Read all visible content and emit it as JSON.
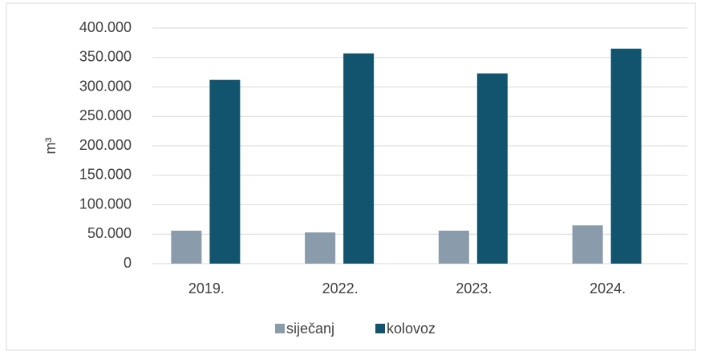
{
  "chart_data": {
    "type": "bar",
    "y_label": "m³",
    "categories": [
      "2019.",
      "2022.",
      "2023.",
      "2024."
    ],
    "series": [
      {
        "name": "siječanj",
        "color": "#8a9bab",
        "values": [
          56000,
          53000,
          56000,
          65000
        ]
      },
      {
        "name": "kolovoz",
        "color": "#12546e",
        "values": [
          312000,
          357000,
          323000,
          365000
        ]
      }
    ],
    "ylim": [
      0,
      400000
    ],
    "yticks": [
      0,
      {
        "value": 50000,
        "label": "50.000"
      },
      {
        "value": 100000,
        "label": "100.000"
      },
      {
        "value": 150000,
        "label": "150.000"
      },
      {
        "value": 200000,
        "label": "200.000"
      },
      {
        "value": 250000,
        "label": "250.000"
      },
      {
        "value": 300000,
        "label": "300.000"
      },
      {
        "value": 350000,
        "label": "350.000"
      },
      {
        "value": 400000,
        "label": "400.000"
      }
    ],
    "grid": true,
    "legend": "bottom"
  }
}
